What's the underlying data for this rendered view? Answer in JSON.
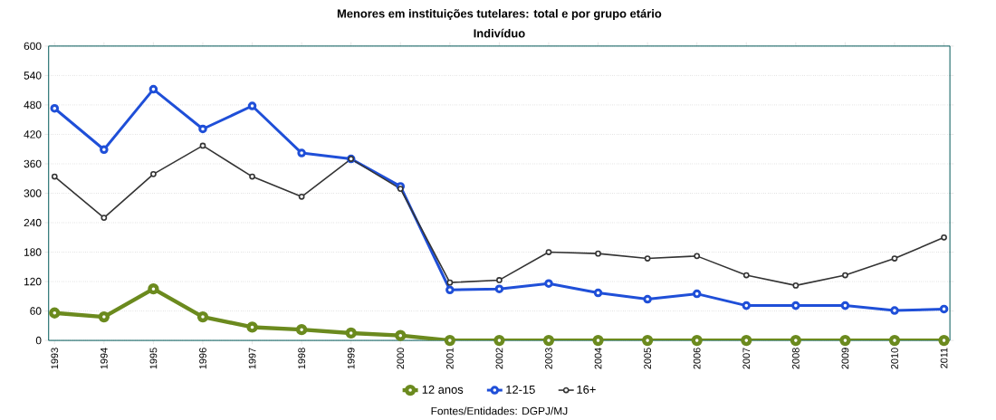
{
  "chart_data": {
    "type": "line",
    "title": "Menores em instituições tutelares: total e por grupo etário",
    "subtitle": "Indivíduo",
    "categories": [
      "1993",
      "1994",
      "1995",
      "1996",
      "1997",
      "1998",
      "1999",
      "2000",
      "2001",
      "2002",
      "2003",
      "2004",
      "2005",
      "2006",
      "2007",
      "2008",
      "2009",
      "2010",
      "2011"
    ],
    "series": [
      {
        "name": "12 anos",
        "color": "#6b8a1e",
        "values": [
          56,
          48,
          105,
          48,
          27,
          22,
          15,
          10,
          0,
          0,
          0,
          0,
          0,
          0,
          0,
          0,
          0,
          0,
          0
        ]
      },
      {
        "name": "12-15",
        "color": "#1f4fd8",
        "values": [
          473,
          389,
          512,
          431,
          478,
          382,
          370,
          314,
          103,
          105,
          116,
          97,
          84,
          95,
          71,
          71,
          71,
          61,
          64
        ]
      },
      {
        "name": "16+",
        "color": "#333333",
        "values": [
          334,
          250,
          339,
          397,
          334,
          293,
          370,
          309,
          118,
          123,
          180,
          177,
          167,
          172,
          133,
          112,
          133,
          167,
          210
        ]
      }
    ],
    "ylim": [
      0,
      600
    ],
    "yticks": [
      0,
      60,
      120,
      180,
      240,
      300,
      360,
      420,
      480,
      540,
      600
    ],
    "grid": "y",
    "legend": "bottom",
    "marker": "circle",
    "line_style": "solid",
    "annotations": [
      "Fontes/Entidades: DGPJ/MJ"
    ]
  }
}
